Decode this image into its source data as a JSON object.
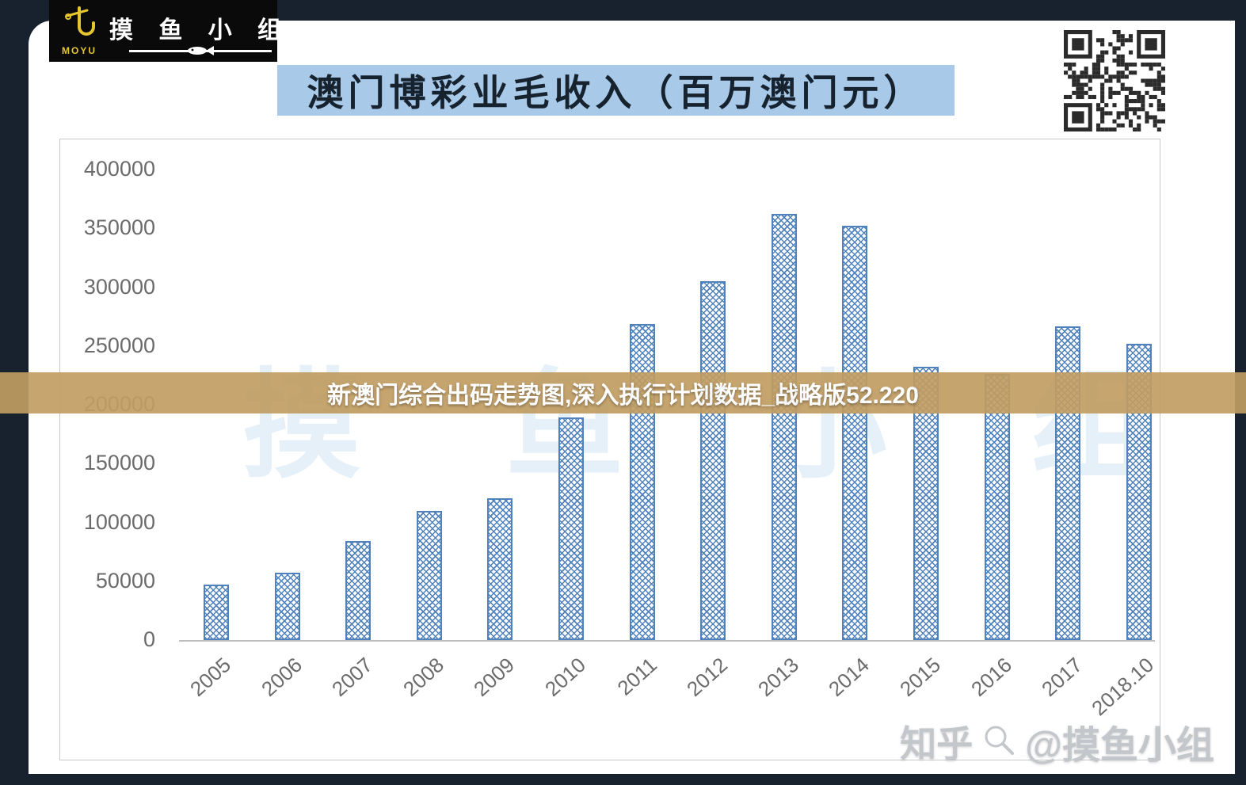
{
  "header": {
    "logo": {
      "brand": "MOYU",
      "chars": "摸 鱼 小 组"
    },
    "title": "澳门博彩业毛收入（百万澳门元）"
  },
  "banner": {
    "text": "新澳门综合出码走势图,深入执行计划数据_战略版52.220"
  },
  "watermarks": {
    "center": "摸 鱼 小 组",
    "zhihu": "知乎",
    "handle": "@摸鱼小组"
  },
  "icons": {
    "qr": "qr-code",
    "logo_mark": "fish-hook-icon",
    "fish": "fish-icon",
    "zhihu_mark": "magnifier-icon"
  },
  "colors": {
    "frame": "#17222e",
    "title_highlight": "#a9c9e9",
    "banner_bg": "#c19d62",
    "bar": "#4f81bd"
  },
  "chart_data": {
    "type": "bar",
    "title": "澳门博彩业毛收入（百万澳门元）",
    "categories": [
      "2005",
      "2006",
      "2007",
      "2008",
      "2009",
      "2010",
      "2011",
      "2012",
      "2013",
      "2014",
      "2015",
      "2016",
      "2017",
      "2018.10"
    ],
    "values": [
      47000,
      57500,
      84000,
      110000,
      120500,
      189500,
      269000,
      305000,
      362000,
      352000,
      232000,
      226000,
      266500,
      252000
    ],
    "xlabel": "",
    "ylabel": "",
    "ylim": [
      0,
      400000
    ],
    "yticks": [
      0,
      50000,
      100000,
      150000,
      200000,
      250000,
      300000,
      350000,
      400000
    ],
    "grid": false,
    "legend": "none",
    "bar_pattern": "diagonal-hatch"
  }
}
